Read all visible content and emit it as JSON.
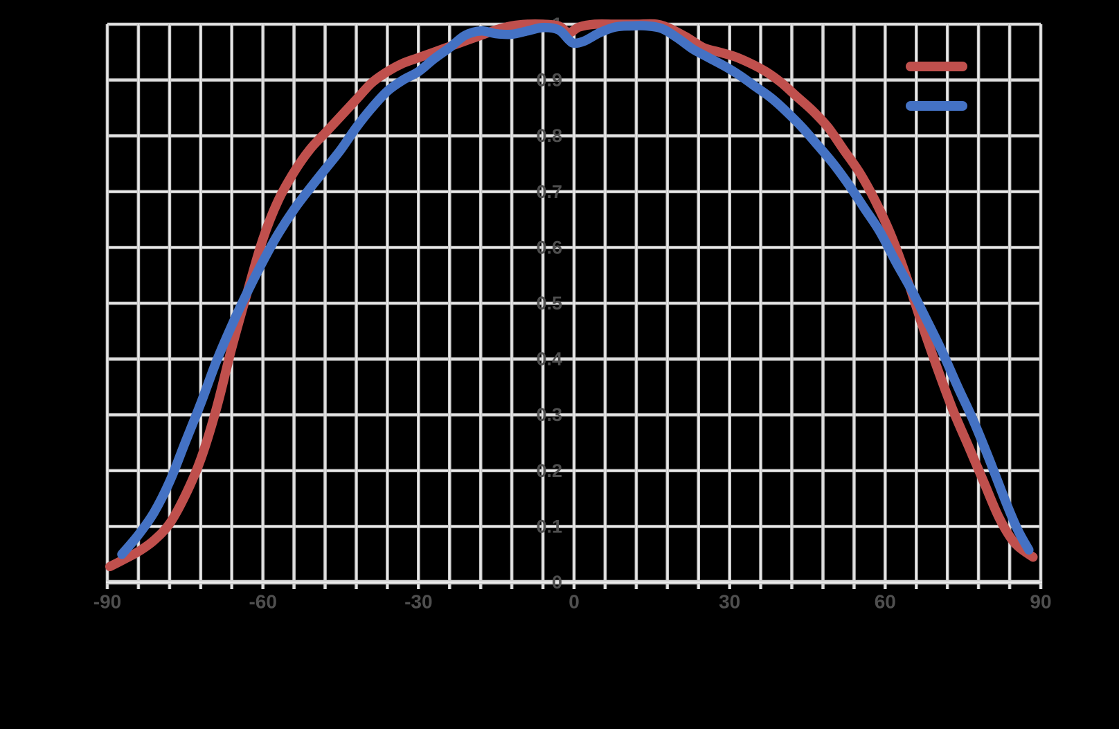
{
  "page": {
    "background_color": "#000000"
  },
  "chart_data": {
    "type": "line",
    "title": "",
    "xlabel": "",
    "ylabel": "",
    "xlim": [
      -90,
      90
    ],
    "ylim": [
      0,
      1
    ],
    "grid": true,
    "x_grid_step": 6,
    "y_grid_step": 0.1,
    "x_ticks": {
      "values": [
        -90,
        -60,
        -30,
        0,
        30,
        60,
        90
      ],
      "labels": [
        "-90",
        "-60",
        "-30",
        "0",
        "30",
        "60",
        "90"
      ]
    },
    "y_ticks": {
      "values": [
        0,
        0.1,
        0.2,
        0.3,
        0.4,
        0.5,
        0.6,
        0.7,
        0.8,
        0.9,
        1
      ],
      "labels": [
        "0",
        "0.1",
        "0.2",
        "0.3",
        "0.4",
        "0.5",
        "0.6",
        "0.7",
        "0.8",
        "0.9",
        "1"
      ]
    },
    "styles": {
      "grid_color": "#c9c9c9",
      "grid_highlight_color": "#ebebeb",
      "axis_line_color": "#cfcfcf",
      "axis_highlight_color": "#ececec",
      "tick_label_color": "#4f4f4f",
      "legend_text_color": "#000000"
    },
    "legend": {
      "position": "top-right",
      "entries": [
        {
          "series": "red",
          "label": ""
        },
        {
          "series": "blue",
          "label": ""
        }
      ]
    },
    "series": [
      {
        "id": "red",
        "color": "#c0504d",
        "points": [
          [
            -89.5,
            0.028
          ],
          [
            -87,
            0.04
          ],
          [
            -84,
            0.055
          ],
          [
            -81,
            0.075
          ],
          [
            -78,
            0.105
          ],
          [
            -75,
            0.155
          ],
          [
            -72,
            0.22
          ],
          [
            -69,
            0.31
          ],
          [
            -66,
            0.42
          ],
          [
            -63,
            0.52
          ],
          [
            -60,
            0.615
          ],
          [
            -57,
            0.685
          ],
          [
            -54,
            0.735
          ],
          [
            -51,
            0.775
          ],
          [
            -48,
            0.805
          ],
          [
            -45,
            0.835
          ],
          [
            -42,
            0.865
          ],
          [
            -39,
            0.895
          ],
          [
            -36,
            0.915
          ],
          [
            -33,
            0.93
          ],
          [
            -30,
            0.94
          ],
          [
            -27,
            0.95
          ],
          [
            -24,
            0.96
          ],
          [
            -21,
            0.97
          ],
          [
            -18,
            0.98
          ],
          [
            -15,
            0.99
          ],
          [
            -12,
            0.997
          ],
          [
            -9,
            1.0
          ],
          [
            -6,
            1.0
          ],
          [
            -3,
            0.997
          ],
          [
            -1,
            0.985
          ],
          [
            1,
            0.995
          ],
          [
            4,
            1.0
          ],
          [
            8,
            1.0
          ],
          [
            12,
            1.0
          ],
          [
            16,
            1.0
          ],
          [
            19,
            0.99
          ],
          [
            22,
            0.975
          ],
          [
            25,
            0.958
          ],
          [
            28,
            0.95
          ],
          [
            31,
            0.942
          ],
          [
            34,
            0.93
          ],
          [
            37,
            0.915
          ],
          [
            40,
            0.895
          ],
          [
            43,
            0.87
          ],
          [
            46,
            0.845
          ],
          [
            49,
            0.815
          ],
          [
            52,
            0.775
          ],
          [
            55,
            0.735
          ],
          [
            58,
            0.685
          ],
          [
            61,
            0.625
          ],
          [
            64,
            0.55
          ],
          [
            67,
            0.465
          ],
          [
            70,
            0.385
          ],
          [
            73,
            0.31
          ],
          [
            76,
            0.245
          ],
          [
            79,
            0.18
          ],
          [
            82,
            0.115
          ],
          [
            85,
            0.07
          ],
          [
            88.5,
            0.045
          ]
        ]
      },
      {
        "id": "blue",
        "color": "#4472c4",
        "points": [
          [
            -87.2,
            0.05
          ],
          [
            -84,
            0.085
          ],
          [
            -81,
            0.125
          ],
          [
            -78,
            0.18
          ],
          [
            -75,
            0.25
          ],
          [
            -72,
            0.32
          ],
          [
            -69,
            0.395
          ],
          [
            -66,
            0.46
          ],
          [
            -63,
            0.52
          ],
          [
            -60,
            0.575
          ],
          [
            -57,
            0.625
          ],
          [
            -54,
            0.668
          ],
          [
            -51,
            0.705
          ],
          [
            -48,
            0.74
          ],
          [
            -45,
            0.775
          ],
          [
            -42,
            0.815
          ],
          [
            -39,
            0.85
          ],
          [
            -36,
            0.88
          ],
          [
            -33,
            0.9
          ],
          [
            -30,
            0.915
          ],
          [
            -27,
            0.938
          ],
          [
            -24,
            0.958
          ],
          [
            -21,
            0.98
          ],
          [
            -18,
            0.988
          ],
          [
            -15,
            0.983
          ],
          [
            -12,
            0.982
          ],
          [
            -9,
            0.988
          ],
          [
            -6,
            0.994
          ],
          [
            -3,
            0.99
          ],
          [
            -1,
            0.972
          ],
          [
            0,
            0.966
          ],
          [
            2,
            0.97
          ],
          [
            5,
            0.985
          ],
          [
            8,
            0.995
          ],
          [
            11,
            0.997
          ],
          [
            14,
            0.997
          ],
          [
            17,
            0.992
          ],
          [
            20,
            0.975
          ],
          [
            23,
            0.955
          ],
          [
            26,
            0.94
          ],
          [
            29,
            0.925
          ],
          [
            32,
            0.908
          ],
          [
            35,
            0.888
          ],
          [
            38,
            0.868
          ],
          [
            41,
            0.843
          ],
          [
            44,
            0.815
          ],
          [
            47,
            0.783
          ],
          [
            50,
            0.75
          ],
          [
            53,
            0.712
          ],
          [
            56,
            0.67
          ],
          [
            59,
            0.628
          ],
          [
            62,
            0.575
          ],
          [
            65,
            0.525
          ],
          [
            68,
            0.47
          ],
          [
            71,
            0.413
          ],
          [
            74,
            0.35
          ],
          [
            77,
            0.29
          ],
          [
            80,
            0.222
          ],
          [
            83,
            0.15
          ],
          [
            85.5,
            0.095
          ],
          [
            87.7,
            0.058
          ]
        ]
      }
    ]
  }
}
